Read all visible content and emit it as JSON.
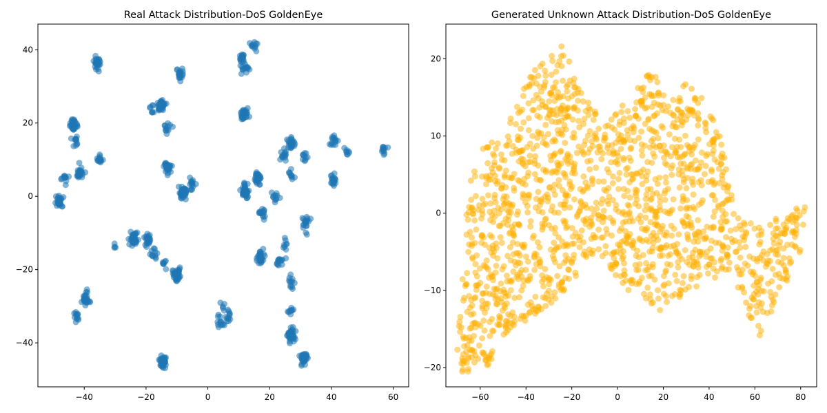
{
  "chart_data": [
    {
      "type": "scatter",
      "title": "Real Attack Distribution-DoS GoldenEye",
      "xlabel": "",
      "ylabel": "",
      "xlim": [
        -55,
        65
      ],
      "ylim": [
        -52,
        47
      ],
      "x_ticks": [
        -40,
        -20,
        0,
        20,
        40,
        60
      ],
      "y_ticks": [
        -40,
        -20,
        0,
        20,
        40
      ],
      "grid": false,
      "color": "#1f77b4",
      "alpha": 0.55,
      "clusters": [
        {
          "x": -36,
          "y": 36.5,
          "n": 30
        },
        {
          "x": -9,
          "y": 33.5,
          "n": 20
        },
        {
          "x": 11,
          "y": 37.5,
          "n": 18
        },
        {
          "x": 15,
          "y": 41,
          "n": 12
        },
        {
          "x": 12,
          "y": 35,
          "n": 15
        },
        {
          "x": -43.5,
          "y": 19.5,
          "n": 35
        },
        {
          "x": -43,
          "y": 15,
          "n": 12
        },
        {
          "x": -18,
          "y": 24,
          "n": 8
        },
        {
          "x": -15,
          "y": 25,
          "n": 40
        },
        {
          "x": -13.5,
          "y": 18,
          "n": 12
        },
        {
          "x": 12,
          "y": 22.5,
          "n": 30
        },
        {
          "x": 27,
          "y": 14.5,
          "n": 25
        },
        {
          "x": 24.5,
          "y": 11,
          "n": 15
        },
        {
          "x": 31.5,
          "y": 11,
          "n": 10
        },
        {
          "x": 41,
          "y": 15,
          "n": 15
        },
        {
          "x": 45,
          "y": 12,
          "n": 8
        },
        {
          "x": 57,
          "y": 12.5,
          "n": 12
        },
        {
          "x": -48,
          "y": -1.5,
          "n": 30
        },
        {
          "x": -41.5,
          "y": 6.5,
          "n": 30
        },
        {
          "x": -46,
          "y": 4.5,
          "n": 12
        },
        {
          "x": -35,
          "y": 10,
          "n": 15
        },
        {
          "x": -13,
          "y": 8,
          "n": 35
        },
        {
          "x": -8,
          "y": 1,
          "n": 45
        },
        {
          "x": -5,
          "y": 3,
          "n": 15
        },
        {
          "x": 12,
          "y": 1.5,
          "n": 40
        },
        {
          "x": 16,
          "y": 5,
          "n": 35
        },
        {
          "x": 17.5,
          "y": -5,
          "n": 15
        },
        {
          "x": 22,
          "y": 0,
          "n": 12
        },
        {
          "x": 27,
          "y": 6,
          "n": 10
        },
        {
          "x": 40.5,
          "y": 4.5,
          "n": 20
        },
        {
          "x": 31.5,
          "y": -7.5,
          "n": 20
        },
        {
          "x": -24,
          "y": -11.5,
          "n": 40
        },
        {
          "x": -19.5,
          "y": -12,
          "n": 25
        },
        {
          "x": -17.5,
          "y": -15.5,
          "n": 12
        },
        {
          "x": -30,
          "y": -13,
          "n": 4
        },
        {
          "x": -10,
          "y": -21.5,
          "n": 40
        },
        {
          "x": -14,
          "y": -18,
          "n": 8
        },
        {
          "x": 17,
          "y": -16.5,
          "n": 35
        },
        {
          "x": 23,
          "y": -18,
          "n": 15
        },
        {
          "x": 25,
          "y": -13,
          "n": 8
        },
        {
          "x": -42.5,
          "y": -32.5,
          "n": 12
        },
        {
          "x": -39.5,
          "y": -28,
          "n": 25
        },
        {
          "x": 4,
          "y": -34.5,
          "n": 12
        },
        {
          "x": 6.5,
          "y": -33,
          "n": 12
        },
        {
          "x": 4.5,
          "y": -31,
          "n": 6
        },
        {
          "x": 27,
          "y": -24,
          "n": 12
        },
        {
          "x": 27,
          "y": -31,
          "n": 10
        },
        {
          "x": 27,
          "y": -38,
          "n": 40
        },
        {
          "x": 31,
          "y": -44,
          "n": 35
        },
        {
          "x": -14.5,
          "y": -45,
          "n": 40
        }
      ]
    },
    {
      "type": "scatter",
      "title": "Generated Unknown Attack Distribution-DoS GoldenEye",
      "xlabel": "",
      "ylabel": "",
      "xlim": [
        -75,
        87
      ],
      "ylim": [
        -22.5,
        24.5
      ],
      "x_ticks": [
        -60,
        -40,
        -20,
        0,
        20,
        40,
        60,
        80
      ],
      "y_ticks": [
        -20,
        -10,
        0,
        10,
        20
      ],
      "grid": false,
      "color": "#ffb000",
      "alpha": 0.5,
      "region_outline": [
        [
          -70,
          -18
        ],
        [
          -68,
          -21
        ],
        [
          -56,
          -20
        ],
        [
          -50,
          -16
        ],
        [
          -45,
          -15
        ],
        [
          -40,
          -14
        ],
        [
          -30,
          -12
        ],
        [
          -20,
          -9
        ],
        [
          -15,
          -7
        ],
        [
          -10,
          -5
        ],
        [
          0,
          -9
        ],
        [
          10,
          -11
        ],
        [
          20,
          -13
        ],
        [
          30,
          -10
        ],
        [
          40,
          -9
        ],
        [
          50,
          -8
        ],
        [
          55,
          -12
        ],
        [
          62,
          -16
        ],
        [
          66,
          -14
        ],
        [
          72,
          -10
        ],
        [
          80,
          -5
        ],
        [
          82,
          1
        ],
        [
          70,
          0
        ],
        [
          60,
          -2
        ],
        [
          50,
          2
        ],
        [
          45,
          10
        ],
        [
          40,
          14
        ],
        [
          30,
          17
        ],
        [
          22,
          14
        ],
        [
          15,
          19
        ],
        [
          5,
          15
        ],
        [
          -5,
          12
        ],
        [
          -15,
          15
        ],
        [
          -22,
          22
        ],
        [
          -30,
          21
        ],
        [
          -40,
          17
        ],
        [
          -50,
          10
        ],
        [
          -60,
          9
        ],
        [
          -65,
          5
        ],
        [
          -67,
          -5
        ],
        [
          -70,
          -12
        ]
      ],
      "n_points": 1700
    }
  ]
}
